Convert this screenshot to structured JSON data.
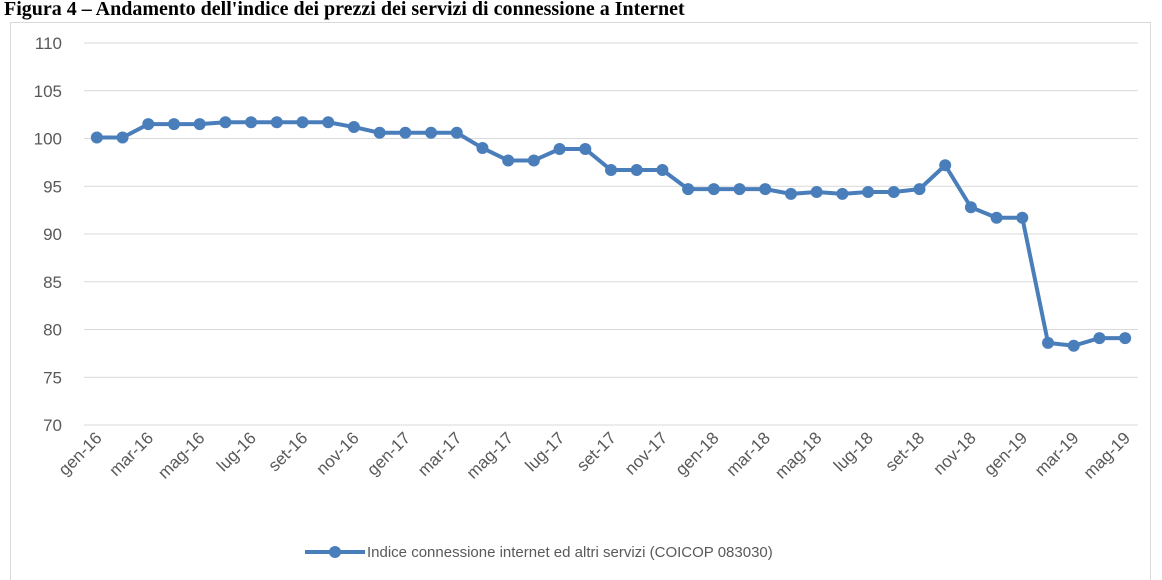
{
  "chart_data": {
    "type": "line",
    "title": "Figura 4 – Andamento dell'indice dei prezzi dei servizi di connessione a Internet",
    "categories": [
      "gen-16",
      null,
      "mar-16",
      null,
      "mag-16",
      null,
      "lug-16",
      null,
      "set-16",
      null,
      "nov-16",
      null,
      "gen-17",
      null,
      "mar-17",
      null,
      "mag-17",
      null,
      "lug-17",
      null,
      "set-17",
      null,
      "nov-17",
      null,
      "gen-18",
      null,
      "mar-18",
      null,
      "mag-18",
      null,
      "lug-18",
      null,
      "set-18",
      null,
      "nov-18",
      null,
      "gen-19",
      null,
      "mar-19",
      null,
      "mag-19"
    ],
    "series": [
      {
        "name": "Indice connessione internet ed altri servizi (COICOP 083030)",
        "color": "#4a7ebb",
        "values": [
          100.1,
          100.1,
          101.5,
          101.5,
          101.5,
          101.7,
          101.7,
          101.7,
          101.7,
          101.7,
          101.2,
          100.6,
          100.6,
          100.6,
          100.6,
          99.0,
          97.7,
          97.7,
          98.9,
          98.9,
          96.7,
          96.7,
          96.7,
          94.7,
          94.7,
          94.7,
          94.7,
          94.2,
          94.4,
          94.2,
          94.4,
          94.4,
          94.7,
          97.2,
          92.8,
          91.7,
          91.7,
          78.6,
          78.3,
          79.1,
          79.1
        ]
      }
    ],
    "ylim": [
      70,
      110
    ],
    "yticks": [
      70,
      75,
      80,
      85,
      90,
      95,
      100,
      105,
      110
    ],
    "grid": true,
    "legend": "bottom"
  }
}
